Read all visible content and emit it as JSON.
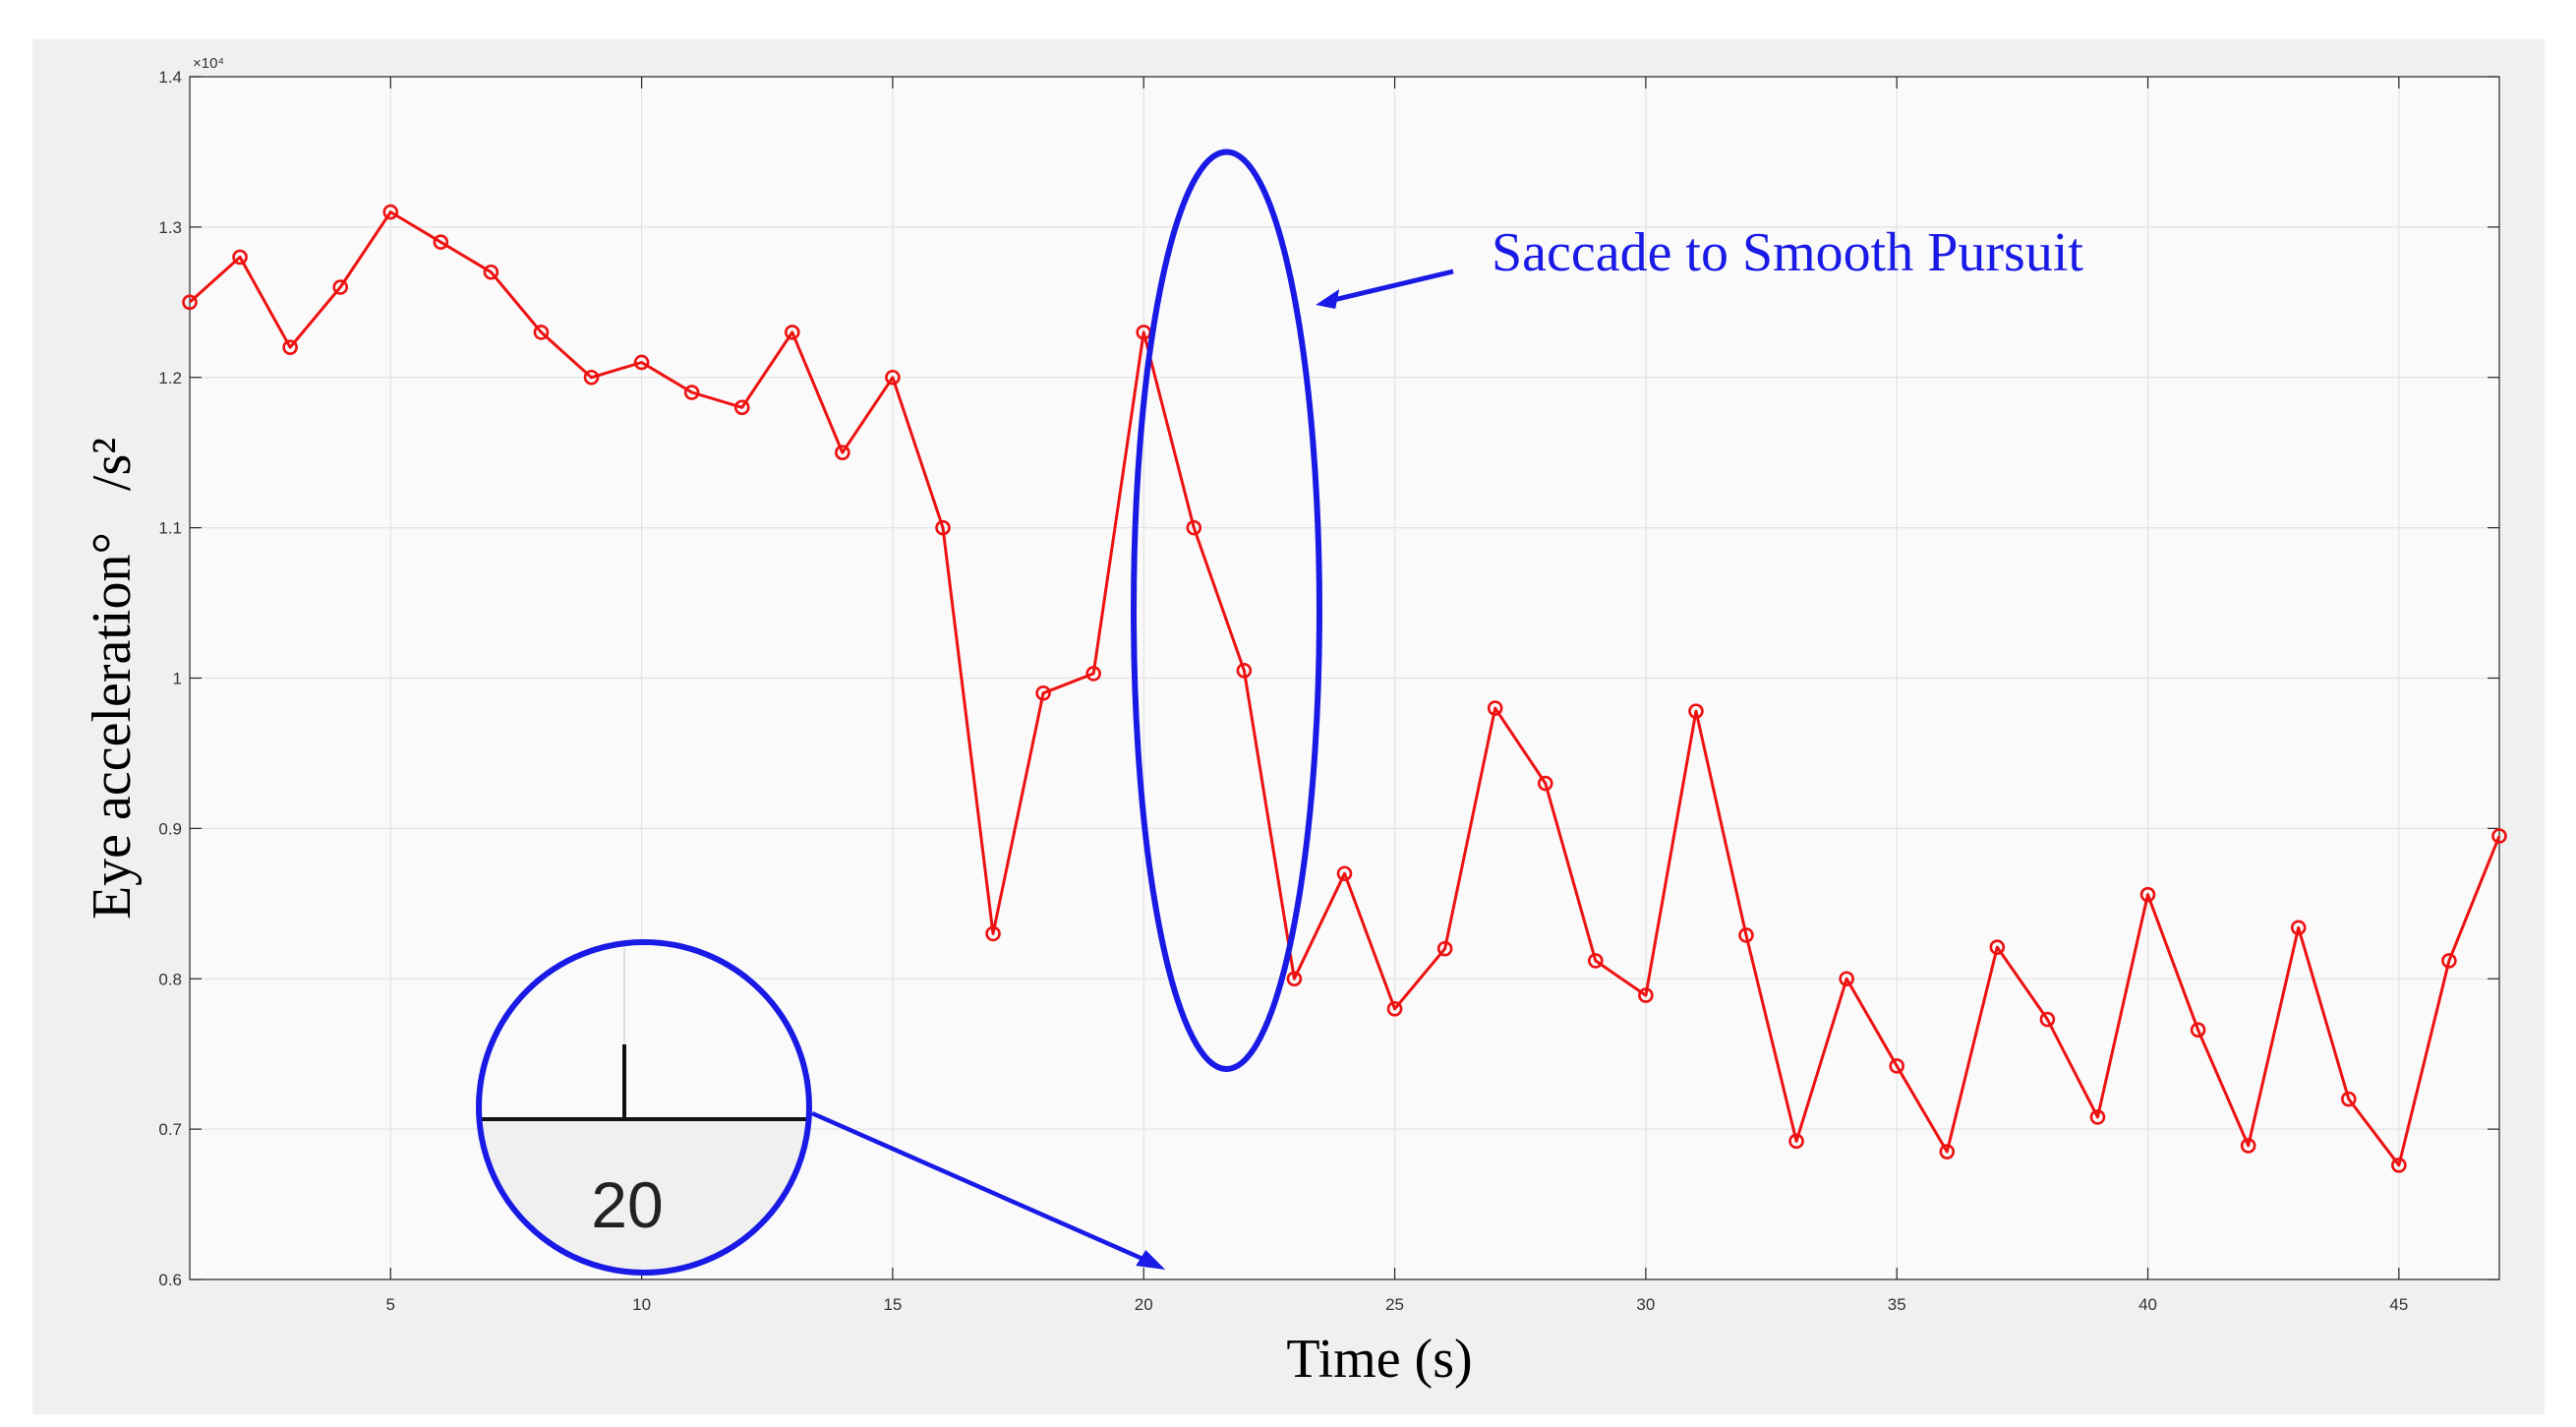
{
  "chart_data": {
    "type": "line",
    "title": "",
    "xlabel": "Time (s)",
    "ylabel": "Eye acceleration°   /s²",
    "y_scale_label": "×10⁴",
    "xlim": [
      1,
      47
    ],
    "ylim": [
      0.6,
      1.4
    ],
    "grid": true,
    "x_ticks": [
      5,
      10,
      15,
      20,
      25,
      30,
      35,
      40,
      45
    ],
    "x_tick_labels": [
      "5",
      "10",
      "15",
      "20",
      "25",
      "30",
      "35",
      "40",
      "45"
    ],
    "y_ticks": [
      0.6,
      0.7,
      0.8,
      0.9,
      1.0,
      1.1,
      1.2,
      1.3,
      1.4
    ],
    "y_tick_labels": [
      "0.6",
      "0.7",
      "0.8",
      "0.9",
      "1",
      "1.1",
      "1.2",
      "1.3",
      "1.4"
    ],
    "series": [
      {
        "name": "Eye acceleration",
        "color": "#ee1111",
        "marker": "circle",
        "x": [
          1,
          2,
          3,
          4,
          5,
          6,
          7,
          8,
          9,
          10,
          11,
          12,
          13,
          14,
          15,
          16,
          17,
          18,
          19,
          20,
          21,
          22,
          23,
          24,
          25,
          26,
          27,
          28,
          29,
          30,
          31,
          32,
          33,
          34,
          35,
          36,
          37,
          38,
          39,
          40,
          41,
          42,
          43,
          44,
          45,
          46,
          47
        ],
        "values": [
          1.25,
          1.28,
          1.22,
          1.26,
          1.31,
          1.29,
          1.27,
          1.23,
          1.2,
          1.21,
          1.19,
          1.18,
          1.23,
          1.15,
          1.2,
          1.1,
          0.83,
          0.99,
          1.003,
          1.23,
          1.1,
          1.005,
          0.8,
          0.87,
          0.78,
          0.82,
          0.98,
          0.93,
          0.812,
          0.789,
          0.978,
          0.829,
          0.692,
          0.8,
          0.742,
          0.685,
          0.821,
          0.773,
          0.708,
          0.856,
          0.766,
          0.689,
          0.834,
          0.72,
          0.676,
          0.812,
          0.895
        ]
      }
    ],
    "annotations": [
      {
        "text": "Saccade to Smooth Pursuit",
        "color": "#1a1ae6",
        "ellipse_x_range": [
          19.8,
          23.5
        ],
        "ellipse_y_range": [
          0.74,
          1.35
        ]
      },
      {
        "text": "20",
        "color": "#1a1ae6",
        "kind": "zoom-inset",
        "points_to_x": 20
      }
    ]
  }
}
